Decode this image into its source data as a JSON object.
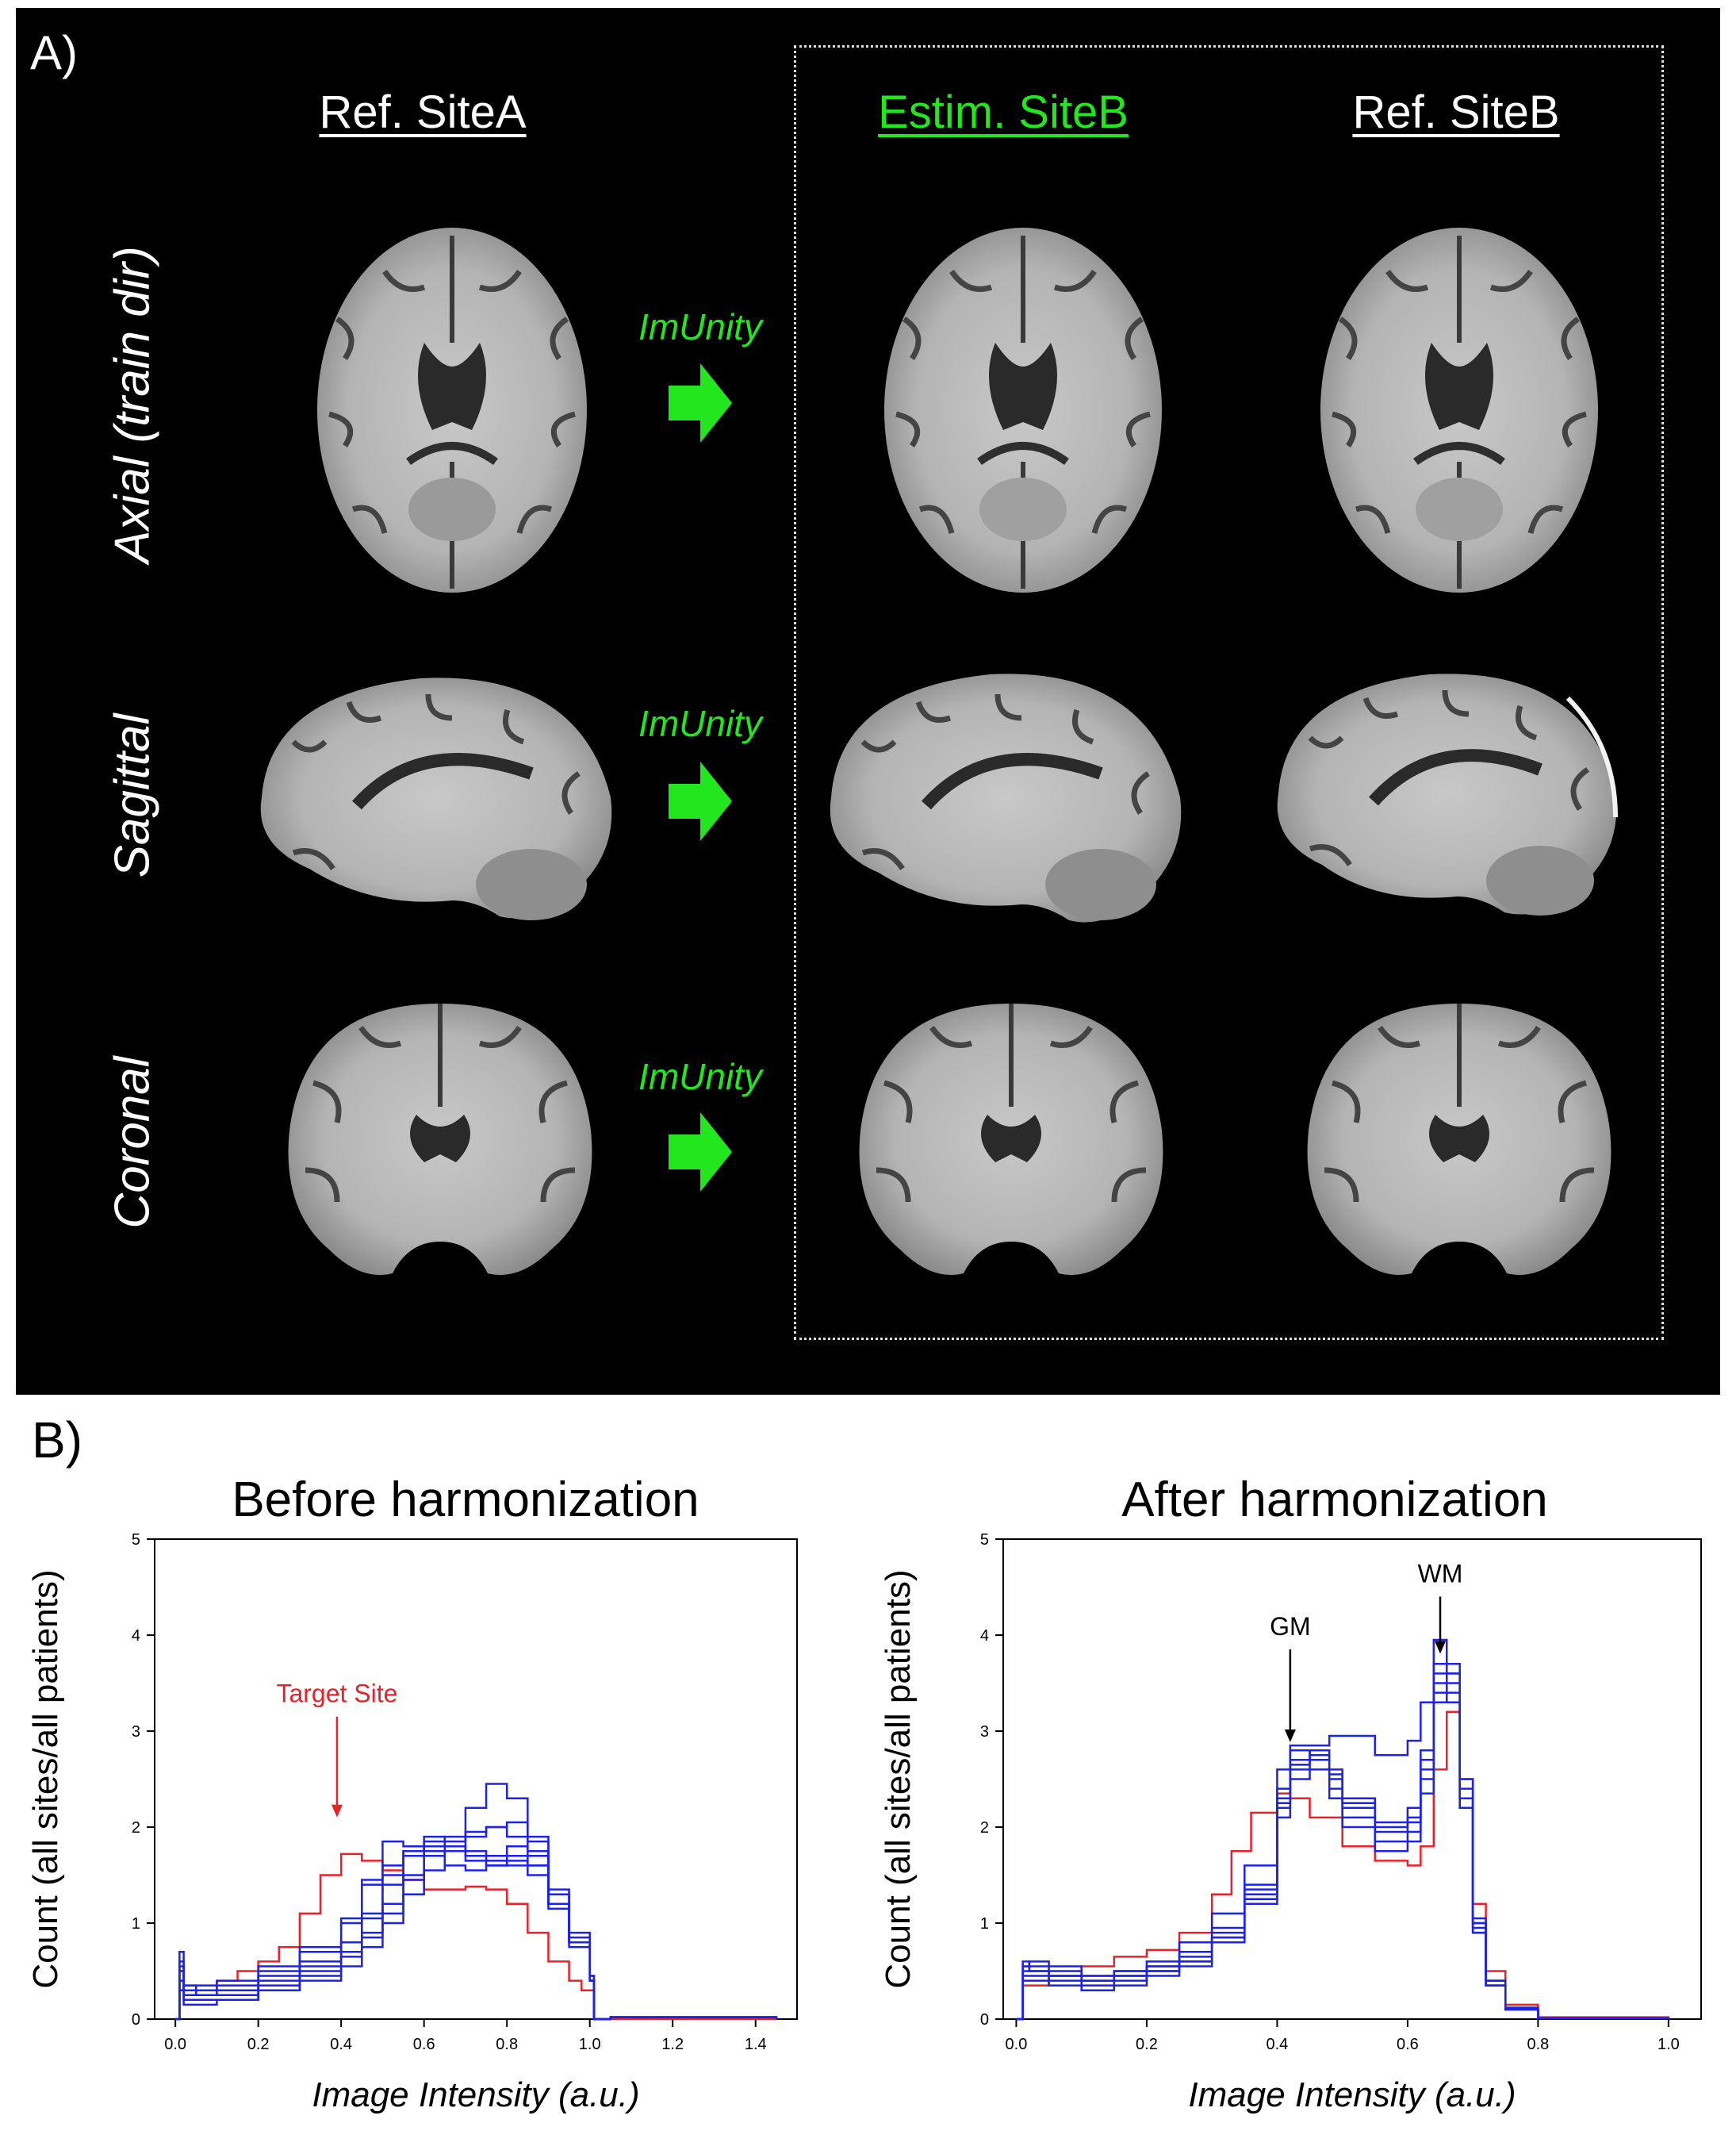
{
  "panels": {
    "a_label": "A)",
    "b_label": "B)"
  },
  "columns": {
    "ref_site_a": "Ref. SiteA",
    "estim_site_b": "Estim. SiteB",
    "ref_site_b": "Ref. SiteB"
  },
  "rows": {
    "axial": "Axial (train dir)",
    "sagittal": "Sagittal",
    "coronal": "Coronal"
  },
  "arrow_label": "ImUnity",
  "colors": {
    "green": "#22e61e",
    "red": "#e8222a",
    "blue": "#1e22e6",
    "panel_bg": "#000000"
  },
  "chart_data": [
    {
      "type": "line",
      "title": "Before harmonization",
      "xlabel": "Image Intensity (a.u.)",
      "ylabel": "Count (all sites/all patients)",
      "xlim": [
        -0.05,
        1.5
      ],
      "ylim": [
        0,
        5
      ],
      "xticks": [
        "0.0",
        "0.2",
        "0.4",
        "0.6",
        "0.8",
        "1.0",
        "1.2",
        "1.4"
      ],
      "yticks": [
        "0",
        "1",
        "2",
        "3",
        "4",
        "5"
      ],
      "annotations": [
        {
          "text": "Target Site",
          "x": 0.39,
          "y": 3.3,
          "color": "red"
        }
      ],
      "series": [
        {
          "color": "red",
          "x": [
            0.0,
            0.01,
            0.02,
            0.05,
            0.1,
            0.15,
            0.2,
            0.25,
            0.3,
            0.35,
            0.4,
            0.45,
            0.5,
            0.55,
            0.6,
            0.65,
            0.7,
            0.75,
            0.8,
            0.85,
            0.9,
            0.95,
            0.98,
            1.0,
            1.01,
            1.05,
            1.3,
            1.45
          ],
          "y": [
            0,
            0.4,
            0.3,
            0.3,
            0.4,
            0.5,
            0.6,
            0.75,
            1.1,
            1.5,
            1.72,
            1.65,
            1.55,
            1.45,
            1.35,
            1.35,
            1.38,
            1.35,
            1.2,
            0.9,
            0.6,
            0.4,
            0.3,
            0.3,
            0,
            0.0,
            0,
            0
          ]
        },
        {
          "color": "blue",
          "x": [
            0.0,
            0.01,
            0.02,
            0.05,
            0.1,
            0.2,
            0.3,
            0.4,
            0.45,
            0.5,
            0.55,
            0.6,
            0.65,
            0.7,
            0.75,
            0.8,
            0.85,
            0.9,
            0.95,
            1.0,
            1.01,
            1.05,
            1.45
          ],
          "y": [
            0,
            0.7,
            0.35,
            0.3,
            0.3,
            0.45,
            0.6,
            0.8,
            1.1,
            1.5,
            1.75,
            1.85,
            1.9,
            1.95,
            2.0,
            1.9,
            1.7,
            1.2,
            0.8,
            0.4,
            0,
            0.02,
            0
          ]
        },
        {
          "color": "blue",
          "x": [
            0.0,
            0.01,
            0.02,
            0.05,
            0.1,
            0.2,
            0.3,
            0.4,
            0.45,
            0.5,
            0.55,
            0.6,
            0.65,
            0.7,
            0.75,
            0.8,
            0.85,
            0.9,
            0.95,
            1.0,
            1.01,
            1.05,
            1.45
          ],
          "y": [
            0,
            0.5,
            0.3,
            0.25,
            0.25,
            0.35,
            0.5,
            0.7,
            0.9,
            1.2,
            1.5,
            1.7,
            1.85,
            2.2,
            2.45,
            2.3,
            1.9,
            1.3,
            0.8,
            0.4,
            0,
            0.02,
            0
          ]
        },
        {
          "color": "blue",
          "x": [
            0.0,
            0.01,
            0.02,
            0.05,
            0.1,
            0.2,
            0.3,
            0.4,
            0.45,
            0.5,
            0.55,
            0.6,
            0.65,
            0.7,
            0.75,
            0.8,
            0.85,
            0.9,
            0.95,
            1.0,
            1.01,
            1.05,
            1.45
          ],
          "y": [
            0,
            0.6,
            0.3,
            0.3,
            0.35,
            0.5,
            0.7,
            1.0,
            1.4,
            1.85,
            1.8,
            1.7,
            1.6,
            1.55,
            1.6,
            1.7,
            1.6,
            1.2,
            0.8,
            0.4,
            0,
            0.02,
            0
          ]
        },
        {
          "color": "blue",
          "x": [
            0.0,
            0.01,
            0.02,
            0.05,
            0.1,
            0.2,
            0.3,
            0.4,
            0.45,
            0.5,
            0.55,
            0.6,
            0.65,
            0.7,
            0.75,
            0.8,
            0.85,
            0.9,
            0.95,
            1.0,
            1.01,
            1.05,
            1.45
          ],
          "y": [
            0,
            0.4,
            0.2,
            0.2,
            0.2,
            0.3,
            0.45,
            0.65,
            0.85,
            1.1,
            1.45,
            1.75,
            1.8,
            1.75,
            1.7,
            1.8,
            1.75,
            1.3,
            0.85,
            0.45,
            0,
            0.02,
            0
          ]
        },
        {
          "color": "blue",
          "x": [
            0.0,
            0.01,
            0.02,
            0.05,
            0.1,
            0.2,
            0.3,
            0.4,
            0.45,
            0.5,
            0.55,
            0.6,
            0.65,
            0.7,
            0.75,
            0.8,
            0.85,
            0.9,
            0.95,
            1.0,
            1.01,
            1.05,
            1.45
          ],
          "y": [
            0,
            0.5,
            0.25,
            0.25,
            0.3,
            0.4,
            0.55,
            0.8,
            1.05,
            1.4,
            1.7,
            1.9,
            1.8,
            1.65,
            1.6,
            1.65,
            1.6,
            1.2,
            0.8,
            0.4,
            0,
            0.02,
            0
          ]
        },
        {
          "color": "blue",
          "x": [
            0.0,
            0.01,
            0.02,
            0.05,
            0.1,
            0.2,
            0.3,
            0.4,
            0.45,
            0.5,
            0.55,
            0.6,
            0.65,
            0.7,
            0.75,
            0.8,
            0.85,
            0.9,
            0.95,
            1.0,
            1.01,
            1.05,
            1.45
          ],
          "y": [
            0,
            0.3,
            0.15,
            0.15,
            0.2,
            0.3,
            0.4,
            0.55,
            0.75,
            1.0,
            1.3,
            1.55,
            1.75,
            1.9,
            2.0,
            2.05,
            1.85,
            1.35,
            0.9,
            0.45,
            0,
            0.02,
            0
          ]
        },
        {
          "color": "blue",
          "x": [
            0.0,
            0.01,
            0.02,
            0.05,
            0.1,
            0.2,
            0.3,
            0.4,
            0.45,
            0.5,
            0.55,
            0.6,
            0.65,
            0.7,
            0.75,
            0.8,
            0.85,
            0.9,
            0.95,
            1.0,
            1.01,
            1.05,
            1.45
          ],
          "y": [
            0,
            0.55,
            0.35,
            0.35,
            0.4,
            0.55,
            0.75,
            1.05,
            1.45,
            1.6,
            1.75,
            1.8,
            1.75,
            1.7,
            1.65,
            1.6,
            1.5,
            1.15,
            0.75,
            0.4,
            0,
            0.02,
            0
          ]
        }
      ]
    },
    {
      "type": "line",
      "title": "After harmonization",
      "xlabel": "Image Intensity (a.u.)",
      "ylabel": "Count (all sites/all patients)",
      "xlim": [
        -0.02,
        1.05
      ],
      "ylim": [
        0,
        5
      ],
      "xticks": [
        "0.0",
        "0.2",
        "0.4",
        "0.6",
        "0.8",
        "1.0"
      ],
      "yticks": [
        "0",
        "1",
        "2",
        "3",
        "4",
        "5"
      ],
      "annotations": [
        {
          "text": "GM",
          "x": 0.42,
          "y": 4.0,
          "color": "black"
        },
        {
          "text": "WM",
          "x": 0.65,
          "y": 4.55,
          "color": "black"
        }
      ],
      "series": [
        {
          "color": "red",
          "x": [
            0.0,
            0.01,
            0.02,
            0.05,
            0.1,
            0.15,
            0.2,
            0.25,
            0.3,
            0.33,
            0.36,
            0.4,
            0.42,
            0.45,
            0.5,
            0.55,
            0.6,
            0.62,
            0.64,
            0.66,
            0.68,
            0.7,
            0.72,
            0.75,
            0.8,
            1.0
          ],
          "y": [
            0,
            0.35,
            0.35,
            0.45,
            0.55,
            0.65,
            0.72,
            0.9,
            1.3,
            1.75,
            2.15,
            2.35,
            2.3,
            2.1,
            1.8,
            1.65,
            1.6,
            1.8,
            2.6,
            3.2,
            2.5,
            1.2,
            0.5,
            0.15,
            0.02,
            0
          ]
        },
        {
          "color": "blue",
          "x": [
            0.0,
            0.01,
            0.02,
            0.05,
            0.1,
            0.15,
            0.2,
            0.25,
            0.3,
            0.35,
            0.4,
            0.42,
            0.45,
            0.48,
            0.5,
            0.55,
            0.6,
            0.62,
            0.64,
            0.66,
            0.68,
            0.7,
            0.72,
            0.75,
            0.8,
            1.0
          ],
          "y": [
            0,
            0.55,
            0.6,
            0.55,
            0.45,
            0.5,
            0.6,
            0.8,
            1.1,
            1.6,
            2.6,
            2.85,
            2.85,
            2.95,
            2.95,
            2.75,
            2.9,
            3.3,
            3.95,
            3.6,
            2.3,
            1.0,
            0.4,
            0.1,
            0.01,
            0
          ]
        },
        {
          "color": "blue",
          "x": [
            0.0,
            0.01,
            0.02,
            0.05,
            0.1,
            0.15,
            0.2,
            0.25,
            0.3,
            0.35,
            0.4,
            0.42,
            0.45,
            0.48,
            0.5,
            0.55,
            0.6,
            0.62,
            0.64,
            0.66,
            0.68,
            0.7,
            0.72,
            0.75,
            0.8,
            1.0
          ],
          "y": [
            0,
            0.5,
            0.5,
            0.45,
            0.4,
            0.45,
            0.55,
            0.7,
            0.95,
            1.4,
            2.4,
            2.8,
            2.75,
            2.5,
            2.3,
            2.05,
            2.2,
            2.8,
            3.7,
            3.5,
            2.2,
            0.9,
            0.35,
            0.1,
            0.01,
            0
          ]
        },
        {
          "color": "blue",
          "x": [
            0.0,
            0.01,
            0.02,
            0.05,
            0.1,
            0.15,
            0.2,
            0.25,
            0.3,
            0.35,
            0.4,
            0.42,
            0.45,
            0.48,
            0.5,
            0.55,
            0.6,
            0.62,
            0.64,
            0.66,
            0.68,
            0.7,
            0.72,
            0.75,
            0.8,
            1.0
          ],
          "y": [
            0,
            0.45,
            0.45,
            0.4,
            0.35,
            0.4,
            0.5,
            0.6,
            0.85,
            1.25,
            2.2,
            2.6,
            2.7,
            2.4,
            2.1,
            1.85,
            1.95,
            2.5,
            3.4,
            3.6,
            2.4,
            1.0,
            0.4,
            0.1,
            0.01,
            0
          ]
        },
        {
          "color": "blue",
          "x": [
            0.0,
            0.01,
            0.02,
            0.05,
            0.1,
            0.15,
            0.2,
            0.25,
            0.3,
            0.35,
            0.4,
            0.42,
            0.45,
            0.48,
            0.5,
            0.55,
            0.6,
            0.62,
            0.64,
            0.66,
            0.68,
            0.7,
            0.72,
            0.75,
            0.8,
            1.0
          ],
          "y": [
            0,
            0.6,
            0.55,
            0.5,
            0.45,
            0.5,
            0.55,
            0.65,
            0.9,
            1.35,
            2.3,
            2.7,
            2.8,
            2.6,
            2.2,
            1.95,
            2.05,
            2.6,
            3.5,
            3.4,
            2.3,
            0.95,
            0.35,
            0.1,
            0.01,
            0
          ]
        },
        {
          "color": "blue",
          "x": [
            0.0,
            0.01,
            0.02,
            0.05,
            0.1,
            0.15,
            0.2,
            0.25,
            0.3,
            0.35,
            0.4,
            0.42,
            0.45,
            0.48,
            0.5,
            0.55,
            0.6,
            0.62,
            0.64,
            0.66,
            0.68,
            0.7,
            0.72,
            0.75,
            0.8,
            1.0
          ],
          "y": [
            0,
            0.4,
            0.4,
            0.35,
            0.3,
            0.35,
            0.45,
            0.55,
            0.8,
            1.2,
            2.1,
            2.5,
            2.6,
            2.3,
            2.0,
            1.75,
            1.85,
            2.35,
            3.3,
            3.7,
            2.5,
            1.05,
            0.4,
            0.12,
            0.01,
            0
          ]
        },
        {
          "color": "blue",
          "x": [
            0.0,
            0.01,
            0.02,
            0.05,
            0.1,
            0.15,
            0.2,
            0.25,
            0.3,
            0.35,
            0.4,
            0.42,
            0.45,
            0.48,
            0.5,
            0.55,
            0.6,
            0.62,
            0.64,
            0.66,
            0.68,
            0.7,
            0.72,
            0.75,
            0.8,
            1.0
          ],
          "y": [
            0,
            0.55,
            0.5,
            0.45,
            0.4,
            0.45,
            0.5,
            0.6,
            0.85,
            1.3,
            2.25,
            2.65,
            2.75,
            2.55,
            2.25,
            2.0,
            2.1,
            2.7,
            3.6,
            3.3,
            2.2,
            0.9,
            0.35,
            0.1,
            0.01,
            0
          ]
        }
      ]
    }
  ]
}
